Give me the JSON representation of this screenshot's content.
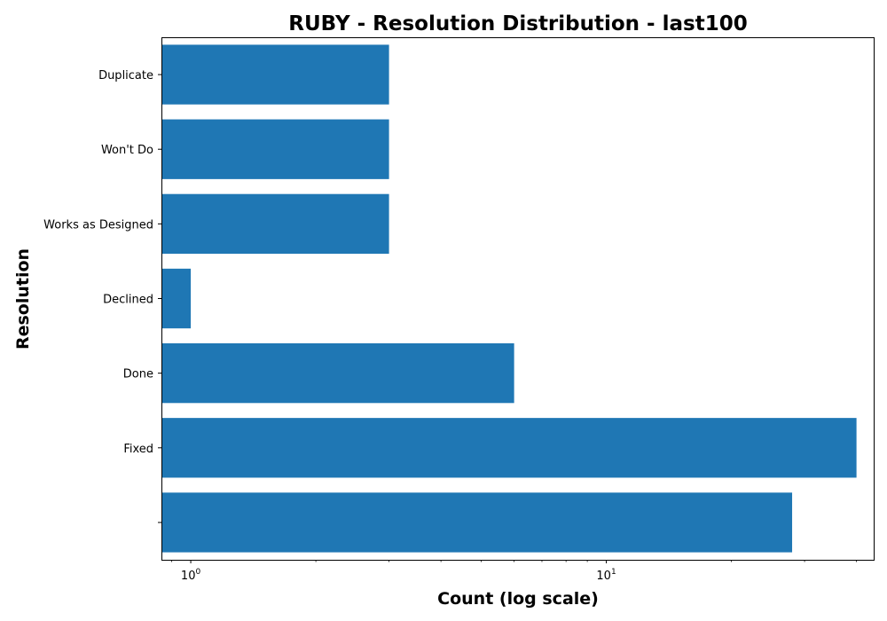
{
  "chart_data": {
    "type": "bar",
    "orientation": "horizontal",
    "title": "RUBY - Resolution Distribution - last100",
    "xlabel": "Count (log scale)",
    "ylabel": "Resolution",
    "x_scale": "log",
    "xlim": [
      0.85,
      44
    ],
    "x_major_ticks": [
      {
        "value": 1,
        "base": "10",
        "exponent": "0"
      },
      {
        "value": 10,
        "base": "10",
        "exponent": "1"
      }
    ],
    "categories": [
      "Duplicate",
      "Won't Do",
      "Works as Designed",
      "Declined",
      "Done",
      "Fixed",
      ""
    ],
    "values": [
      3,
      3,
      3,
      1,
      6,
      40,
      28
    ],
    "bar_color": "#1f77b4",
    "grid": false,
    "legend": "none"
  }
}
